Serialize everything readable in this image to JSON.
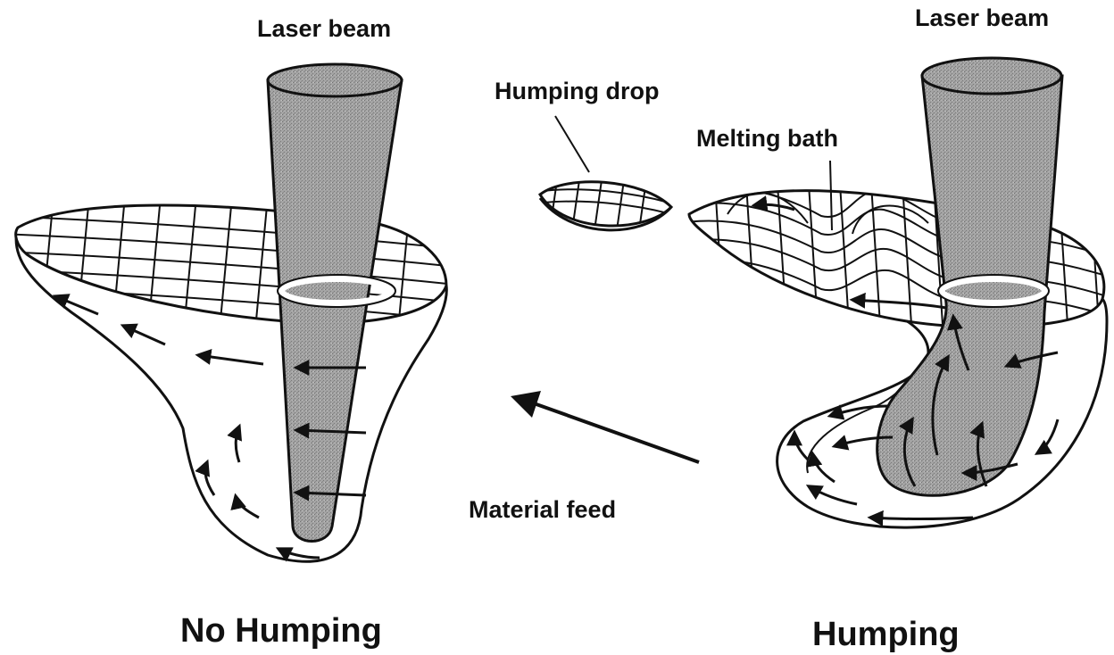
{
  "labels": {
    "laser_beam_left": "Laser beam",
    "laser_beam_right": "Laser beam",
    "humping_drop": "Humping drop",
    "melting_bath": "Melting bath",
    "material_feed": "Material feed",
    "no_humping": "No Humping",
    "humping": "Humping"
  },
  "colors": {
    "ink": "#111111",
    "beam_fill": "#9a9a9a",
    "background": "#ffffff"
  }
}
